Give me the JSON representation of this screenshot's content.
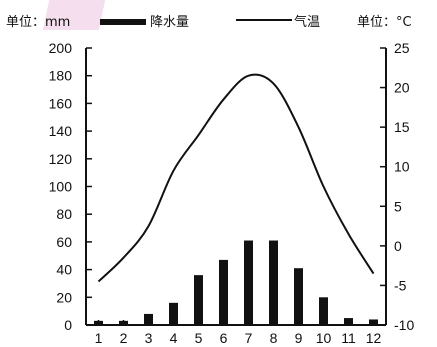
{
  "chart_data": {
    "type": "bar",
    "title": "",
    "left_axis_unit": "单位：mm",
    "right_axis_unit": "单位：°C",
    "legend": {
      "precip_label": "降水量",
      "temp_label": "气温",
      "placement": "top"
    },
    "categories": [
      "1",
      "2",
      "3",
      "4",
      "5",
      "6",
      "7",
      "8",
      "9",
      "10",
      "11",
      "12"
    ],
    "series": [
      {
        "name": "降水量",
        "type": "bar",
        "axis": "left",
        "values": [
          3,
          3,
          8,
          16,
          36,
          47,
          61,
          61,
          41,
          20,
          5,
          4
        ]
      },
      {
        "name": "气温",
        "type": "line",
        "axis": "right",
        "values": [
          -4.5,
          -1.5,
          2.5,
          9.5,
          14,
          18.5,
          21.5,
          20.5,
          15,
          7.5,
          1.5,
          -3.5
        ]
      }
    ],
    "y_left": {
      "lim": [
        0,
        200
      ],
      "ticks": [
        0,
        20,
        40,
        60,
        80,
        100,
        120,
        140,
        160,
        180,
        200
      ]
    },
    "y_right": {
      "lim": [
        -10,
        25
      ],
      "ticks": [
        -10,
        -5,
        0,
        5,
        10,
        15,
        20,
        25
      ],
      "tick_labels": [
        "-10",
        "-5",
        "0",
        "5",
        "10",
        "15",
        "20",
        "25"
      ]
    },
    "grid": false,
    "colors": {
      "bars": "#111111",
      "line": "#111111",
      "axes": "#111111"
    }
  }
}
